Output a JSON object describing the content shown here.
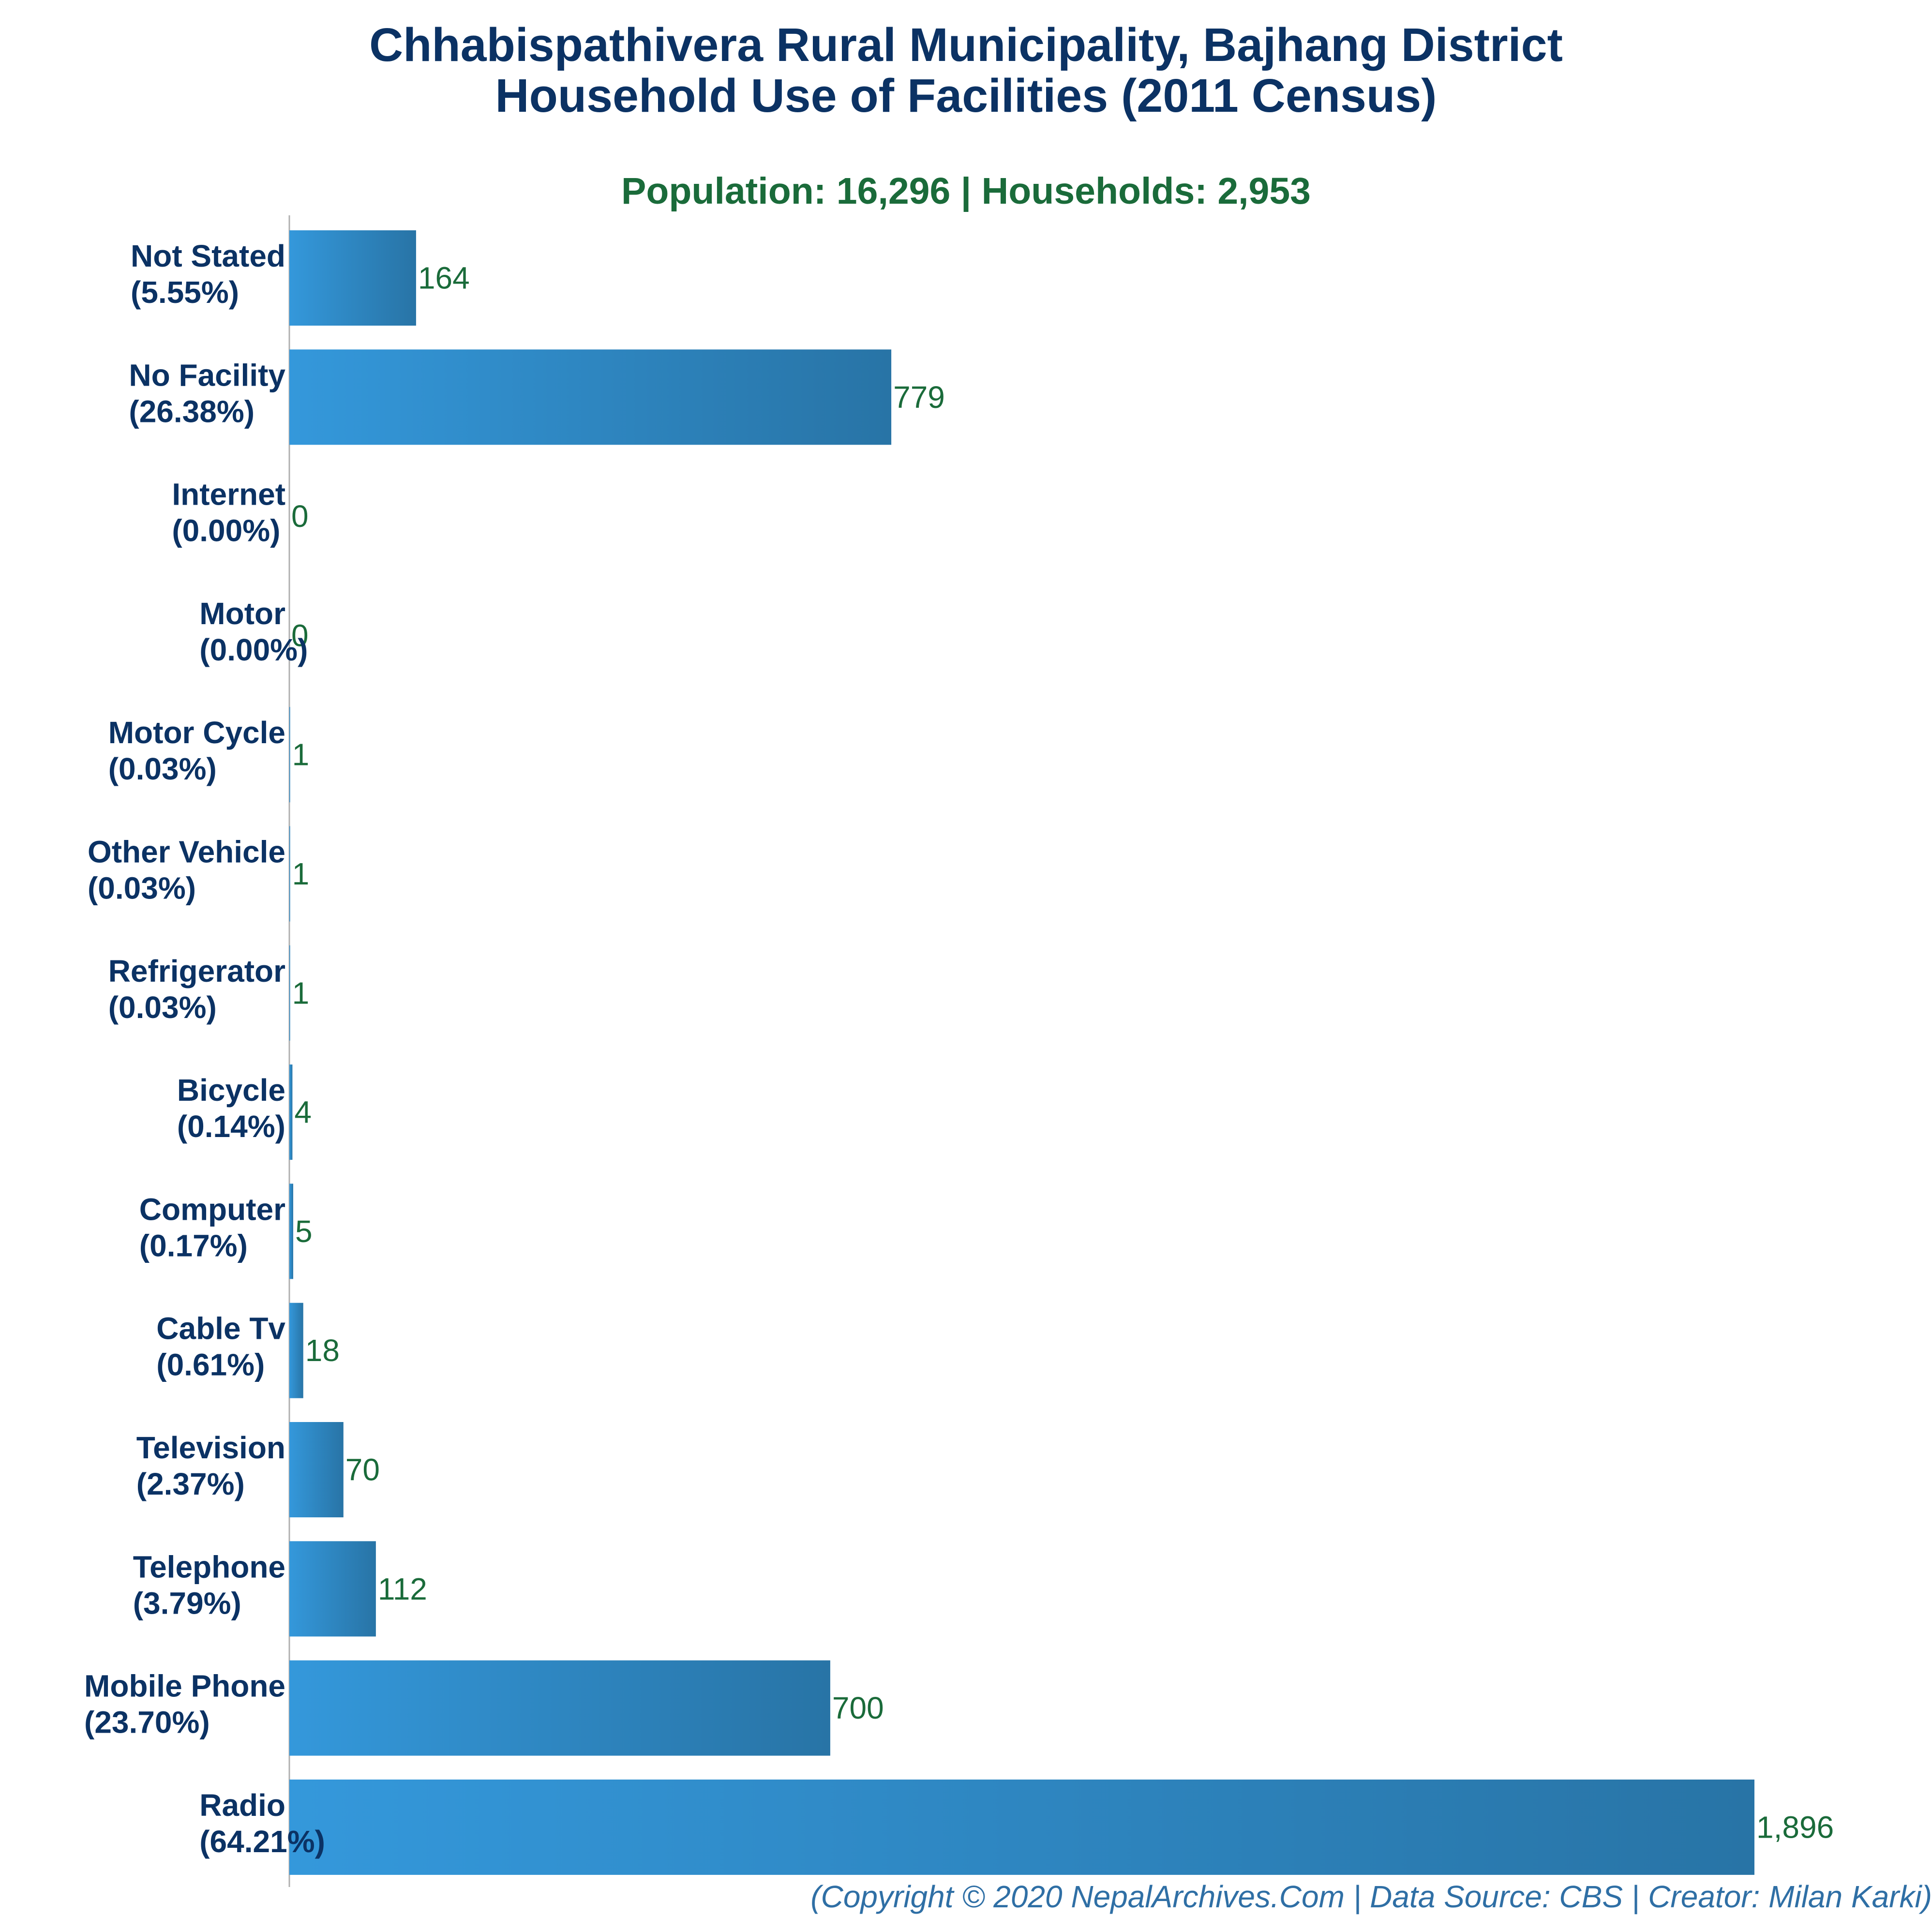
{
  "title_line_1": "Chhabispathivera Rural Municipality, Bajhang District",
  "title_line_2": "Household Use of Facilities (2011 Census)",
  "subtitle": "Population: 16,296 | Households: 2,953",
  "footer": "(Copyright © 2020 NepalArchives.Com | Data Source: CBS | Creator: Milan Karki)",
  "colors": {
    "title": "#0b3264",
    "subtitle": "#1a6b3a",
    "bar_light": "#3498db",
    "bar_dark": "#2874a6",
    "value_label": "#1a6b3a",
    "footer": "#2f6fa5"
  },
  "chart_data": {
    "type": "bar",
    "orientation": "horizontal",
    "categories": [
      {
        "name": "Not Stated",
        "pct": "(5.55%)"
      },
      {
        "name": "No Facility",
        "pct": "(26.38%)"
      },
      {
        "name": "Internet",
        "pct": "(0.00%)"
      },
      {
        "name": "Motor",
        "pct": "(0.00%)"
      },
      {
        "name": "Motor Cycle",
        "pct": "(0.03%)"
      },
      {
        "name": "Other Vehicle",
        "pct": "(0.03%)"
      },
      {
        "name": "Refrigerator",
        "pct": "(0.03%)"
      },
      {
        "name": "Bicycle",
        "pct": "(0.14%)"
      },
      {
        "name": "Computer",
        "pct": "(0.17%)"
      },
      {
        "name": "Cable Tv",
        "pct": "(0.61%)"
      },
      {
        "name": "Television",
        "pct": "(2.37%)"
      },
      {
        "name": "Telephone",
        "pct": "(3.79%)"
      },
      {
        "name": "Mobile Phone",
        "pct": "(23.70%)"
      },
      {
        "name": "Radio",
        "pct": "(64.21%)"
      }
    ],
    "values": [
      164,
      779,
      0,
      0,
      1,
      1,
      1,
      4,
      5,
      18,
      70,
      112,
      700,
      1896
    ],
    "value_labels": [
      "164",
      "779",
      "0",
      "0",
      "1",
      "1",
      "1",
      "4",
      "5",
      "18",
      "70",
      "112",
      "700",
      "1,896"
    ],
    "xlim": [
      0,
      1896
    ],
    "grid": false,
    "legend": "none"
  }
}
